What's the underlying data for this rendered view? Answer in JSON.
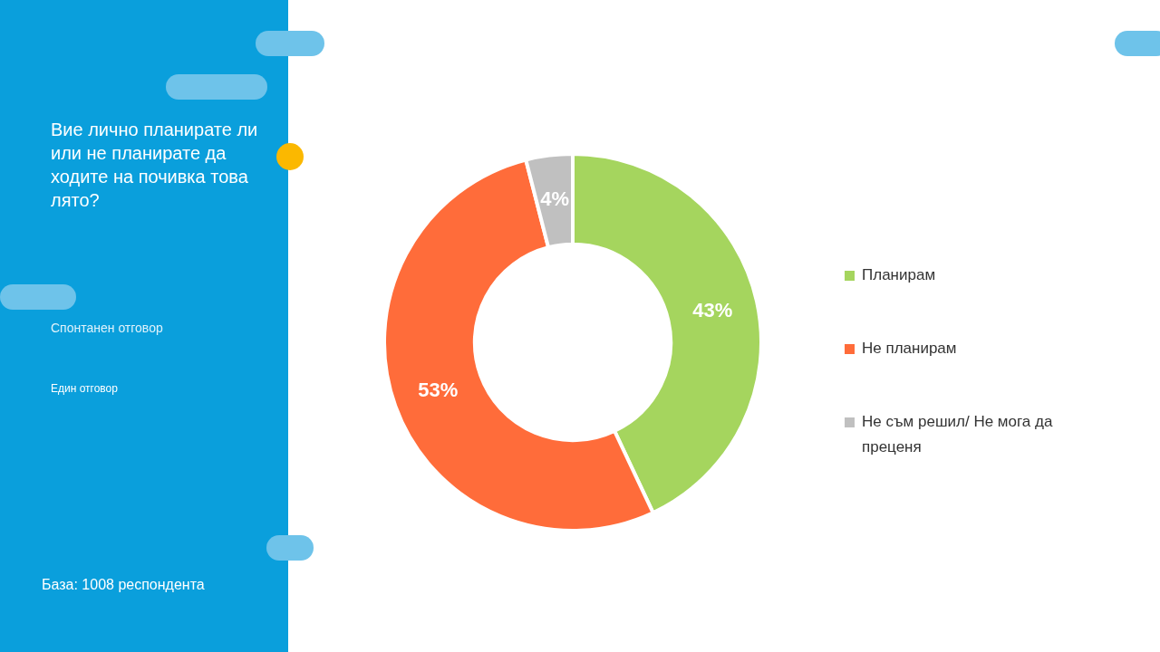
{
  "chart_data": {
    "type": "donut",
    "title": "Вие лично планирате ли или не планирате да ходите на почивка това лято?",
    "subtitle": "Спонтанен отговор",
    "annotations": [
      "Един отговор",
      "База: 1008 респондента"
    ],
    "categories": [
      "Планирам",
      "Не планирам",
      "Не съм решил/ Не мога да преценя"
    ],
    "values": [
      43,
      53,
      4
    ],
    "value_labels": [
      "43%",
      "53%",
      "4%"
    ],
    "colors": [
      "#a5d55e",
      "#ff6c3a",
      "#c0c0c0"
    ],
    "legend": "right"
  }
}
